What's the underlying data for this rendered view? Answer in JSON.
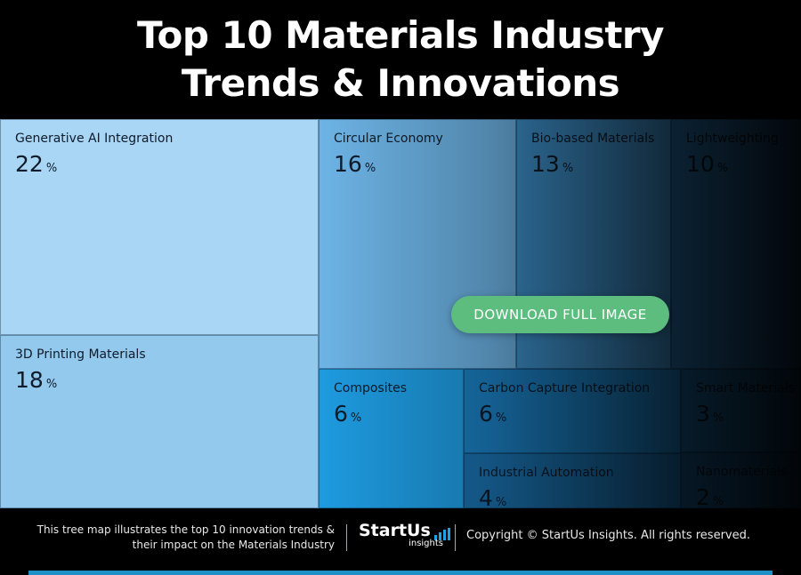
{
  "header": {
    "title_line1": "Top 10 Materials Industry",
    "title_line2": "Trends & Innovations"
  },
  "chart_data": {
    "type": "treemap",
    "unit": "%",
    "items": [
      {
        "label": "Generative AI Integration",
        "value": 22,
        "color": "#a9d6f5"
      },
      {
        "label": "3D Printing Materials",
        "value": 18,
        "color": "#94c9ee"
      },
      {
        "label": "Circular Economy",
        "value": 16,
        "color": "#6db4e6"
      },
      {
        "label": "Bio-based Materials",
        "value": 13,
        "color": "#3f94d0"
      },
      {
        "label": "Lightweighting",
        "value": 10,
        "color": "#2a7dbe"
      },
      {
        "label": "Composites",
        "value": 6,
        "color": "#1e9be0"
      },
      {
        "label": "Carbon Capture Integration",
        "value": 6,
        "color": "#1b7fc2"
      },
      {
        "label": "Smart Materials",
        "value": 3,
        "color": "#1a6aa6"
      },
      {
        "label": "Industrial Automation",
        "value": 4,
        "color": "#1a70ad"
      },
      {
        "label": "Nanomaterials",
        "value": 2,
        "color": "#185e95"
      }
    ]
  },
  "download_button": {
    "label": "DOWNLOAD FULL IMAGE"
  },
  "footer": {
    "description_line1": "This tree map illustrates the top 10 innovation trends &",
    "description_line2": "their impact on the Materials Industry",
    "logo_main": "StartUs",
    "logo_sub": "insights",
    "copyright": "Copyright © StartUs Insights. All rights reserved."
  },
  "colors": {
    "accent_green": "#5dbd7f",
    "brand_blue": "#1e90c8"
  }
}
